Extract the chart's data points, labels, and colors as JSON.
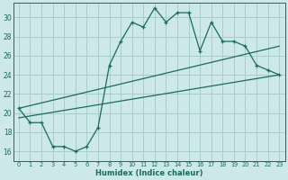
{
  "background_color": "#cce8e8",
  "grid_color": "#aacccc",
  "line_color": "#1a6b5a",
  "xlim": [
    -0.5,
    23.5
  ],
  "ylim": [
    15.0,
    31.5
  ],
  "xticks": [
    0,
    1,
    2,
    3,
    4,
    5,
    6,
    7,
    8,
    9,
    10,
    11,
    12,
    13,
    14,
    15,
    16,
    17,
    18,
    19,
    20,
    21,
    22,
    23
  ],
  "yticks": [
    16,
    18,
    20,
    22,
    24,
    26,
    28,
    30
  ],
  "xlabel": "Humidex (Indice chaleur)",
  "line1_x": [
    0,
    1,
    2,
    3,
    4,
    5,
    6,
    7,
    8,
    9,
    10,
    11,
    12,
    13,
    14,
    15,
    16,
    17,
    18,
    19,
    20,
    21,
    22,
    23
  ],
  "line1_y": [
    20.5,
    19.0,
    19.0,
    16.5,
    16.5,
    16.0,
    16.5,
    18.5,
    25.0,
    27.5,
    29.5,
    29.0,
    31.0,
    29.5,
    30.5,
    30.5,
    26.5,
    29.5,
    27.5,
    27.5,
    27.0,
    25.0,
    24.5,
    24.0
  ],
  "line2_x": [
    0,
    23
  ],
  "line2_y": [
    20.5,
    27.0
  ],
  "line3_x": [
    0,
    23
  ],
  "line3_y": [
    19.5,
    24.0
  ]
}
